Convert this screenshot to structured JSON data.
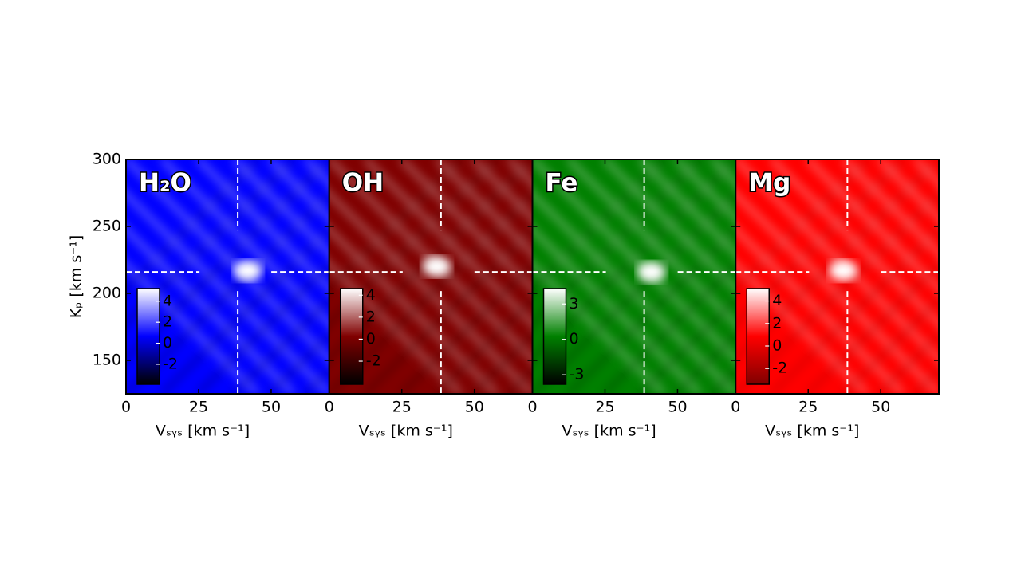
{
  "chart_data": [
    {
      "type": "heatmap",
      "title": "H₂O",
      "xlabel": "Vₛᵧₛ [km s⁻¹]",
      "ylabel": "Kₚ [km s⁻¹]",
      "xlim": [
        0,
        70
      ],
      "xticks": [
        0,
        25,
        50
      ],
      "ylim": [
        125,
        300
      ],
      "yticks": [
        150,
        200,
        250,
        300
      ],
      "cmap": [
        "#000000",
        "#0000ff",
        "#ffffff"
      ],
      "clim": [
        -3.9,
        5.2
      ],
      "cticks": [
        4,
        2,
        0,
        -2
      ],
      "vline": 38.5,
      "hline": 216,
      "peak": {
        "x": 42,
        "y": 217
      }
    },
    {
      "type": "heatmap",
      "title": "OH",
      "xlabel": "Vₛᵧₛ [km s⁻¹]",
      "xlim": [
        0,
        70
      ],
      "xticks": [
        0,
        25,
        50
      ],
      "ylim": [
        125,
        300
      ],
      "yticks": [
        150,
        200,
        250,
        300
      ],
      "cmap": [
        "#000000",
        "#800000",
        "#ffffff"
      ],
      "clim": [
        -4.1,
        4.6
      ],
      "cticks": [
        4,
        2,
        0,
        -2
      ],
      "vline": 38.5,
      "hline": 216,
      "peak": {
        "x": 37,
        "y": 220
      }
    },
    {
      "type": "heatmap",
      "title": "Fe",
      "xlabel": "Vₛᵧₛ [km s⁻¹]",
      "xlim": [
        0,
        70
      ],
      "xticks": [
        0,
        25,
        50
      ],
      "ylim": [
        125,
        300
      ],
      "yticks": [
        150,
        200,
        250,
        300
      ],
      "cmap": [
        "#000000",
        "#008000",
        "#ffffff"
      ],
      "clim": [
        -3.8,
        4.3
      ],
      "cticks": [
        3,
        0,
        -3
      ],
      "vline": 38.5,
      "hline": 216,
      "peak": {
        "x": 41,
        "y": 216
      }
    },
    {
      "type": "heatmap",
      "title": "Mg",
      "xlabel": "Vₛᵧₛ [km s⁻¹]",
      "xlim": [
        0,
        70
      ],
      "xticks": [
        0,
        25,
        50
      ],
      "ylim": [
        125,
        300
      ],
      "yticks": [
        150,
        200,
        250,
        300
      ],
      "cmap": [
        "#800000",
        "#ff0000",
        "#ffffff"
      ],
      "clim": [
        -3.4,
        5.1
      ],
      "cticks": [
        4,
        2,
        0,
        -2
      ],
      "vline": 38.5,
      "hline": 216,
      "peak": {
        "x": 37,
        "y": 217
      }
    }
  ]
}
